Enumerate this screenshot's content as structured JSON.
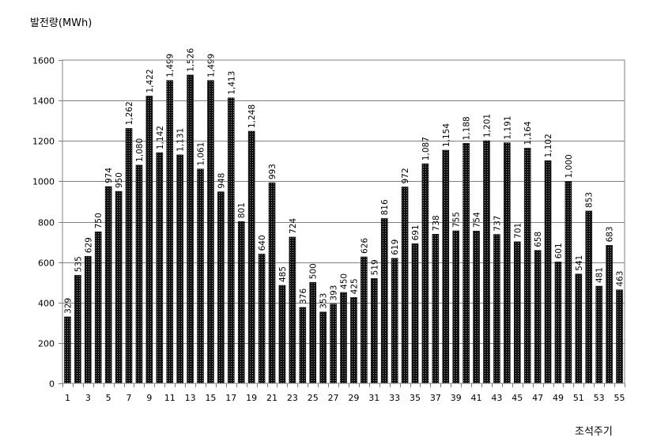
{
  "chart_data": {
    "type": "bar",
    "title": "",
    "ylabel": "발전량(MWh)",
    "xlabel": "조석주기",
    "ylim": [
      0,
      1600
    ],
    "yticks": [
      0,
      200,
      400,
      600,
      800,
      1000,
      1200,
      1400,
      1600
    ],
    "grid": true,
    "legend": "none",
    "categories": [
      "1",
      "2",
      "3",
      "4",
      "5",
      "6",
      "7",
      "8",
      "9",
      "10",
      "11",
      "12",
      "13",
      "14",
      "15",
      "16",
      "17",
      "18",
      "19",
      "20",
      "21",
      "22",
      "23",
      "24",
      "25",
      "26",
      "27",
      "28",
      "29",
      "30",
      "31",
      "32",
      "33",
      "34",
      "35",
      "36",
      "37",
      "38",
      "39",
      "40",
      "41",
      "42",
      "43",
      "44",
      "45",
      "46",
      "47",
      "48",
      "49",
      "50",
      "51",
      "52",
      "53",
      "54",
      "55"
    ],
    "xtick_labels": [
      "1",
      "3",
      "5",
      "7",
      "9",
      "11",
      "13",
      "15",
      "17",
      "19",
      "21",
      "23",
      "25",
      "27",
      "29",
      "31",
      "33",
      "35",
      "37",
      "39",
      "41",
      "43",
      "45",
      "47",
      "49",
      "51",
      "53",
      "55"
    ],
    "values": [
      329,
      535,
      629,
      750,
      974,
      950,
      1262,
      1080,
      1422,
      1142,
      1499,
      1131,
      1526,
      1061,
      1499,
      948,
      1413,
      801,
      1248,
      640,
      993,
      485,
      724,
      376,
      500,
      353,
      393,
      450,
      425,
      626,
      519,
      816,
      619,
      972,
      691,
      1087,
      738,
      1154,
      755,
      1188,
      754,
      1201,
      737,
      1191,
      701,
      1164,
      658,
      1102,
      601,
      1000,
      541,
      853,
      481,
      683,
      463
    ],
    "value_labels": [
      "329",
      "535",
      "629",
      "750",
      "974",
      "950",
      "1,262",
      "1,080",
      "1,422",
      "1,142",
      "1,499",
      "1,131",
      "1,526",
      "1,061",
      "1,499",
      "948",
      "1,413",
      "801",
      "1,248",
      "640",
      "993",
      "485",
      "724",
      "376",
      "500",
      "353",
      "393",
      "450",
      "425",
      "626",
      "519",
      "816",
      "619",
      "972",
      "691",
      "1,087",
      "738",
      "1,154",
      "755",
      "1,188",
      "754",
      "1,201",
      "737",
      "1,191",
      "701",
      "1,164",
      "658",
      "1,102",
      "601",
      "1,000",
      "541",
      "853",
      "481",
      "683",
      "463"
    ],
    "bar_color": "#111111"
  }
}
